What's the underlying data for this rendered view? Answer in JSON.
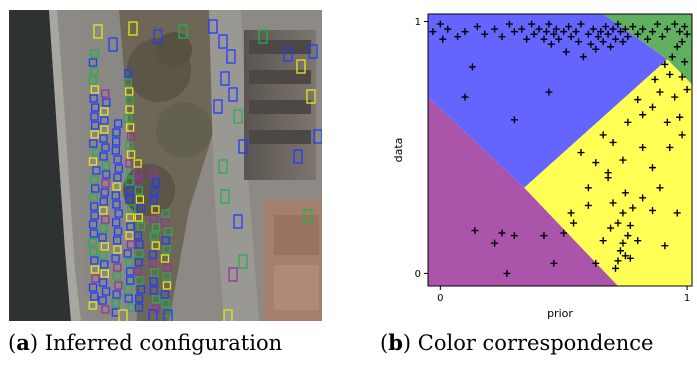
{
  "figure": {
    "panel_a": {
      "caption_tag": "a",
      "caption_text": "Inferred configuration",
      "box_colors": {
        "blue": "#1f3cff",
        "yellow": "#e8e61a",
        "green": "#22b14c",
        "purple": "#9b2fa3"
      }
    },
    "panel_b": {
      "caption_tag": "b",
      "caption_text": "Color correspondence"
    }
  },
  "chart_data": {
    "type": "scatter",
    "title": "",
    "xlabel": "prior",
    "ylabel": "data",
    "xlim": [
      -0.05,
      1.02
    ],
    "ylim": [
      -0.05,
      1.03
    ],
    "xticks": [
      "0",
      "1"
    ],
    "yticks": [
      "0",
      "1"
    ],
    "grid": false,
    "regions": [
      {
        "color": "#6464ff",
        "polygon": [
          [
            -0.05,
            1.03
          ],
          [
            0.66,
            1.03
          ],
          [
            0.92,
            0.85
          ],
          [
            0.34,
            0.34
          ],
          [
            -0.05,
            0.7
          ]
        ]
      },
      {
        "color": "#60b060",
        "polygon": [
          [
            0.66,
            1.03
          ],
          [
            1.02,
            1.03
          ],
          [
            1.02,
            0.75
          ],
          [
            0.92,
            0.85
          ]
        ]
      },
      {
        "color": "#ffff55",
        "polygon": [
          [
            0.34,
            0.34
          ],
          [
            0.92,
            0.85
          ],
          [
            1.02,
            0.75
          ],
          [
            1.02,
            -0.05
          ],
          [
            0.72,
            -0.05
          ]
        ]
      },
      {
        "color": "#aa55aa",
        "polygon": [
          [
            -0.05,
            0.7
          ],
          [
            0.34,
            0.34
          ],
          [
            0.72,
            -0.05
          ],
          [
            -0.05,
            -0.05
          ]
        ]
      }
    ],
    "points": [
      [
        -0.03,
        0.96
      ],
      [
        0.0,
        0.99
      ],
      [
        0.01,
        0.93
      ],
      [
        0.03,
        0.97
      ],
      [
        0.07,
        0.94
      ],
      [
        0.1,
        0.96
      ],
      [
        0.15,
        0.98
      ],
      [
        0.18,
        0.95
      ],
      [
        0.22,
        0.97
      ],
      [
        0.25,
        0.94
      ],
      [
        0.28,
        0.99
      ],
      [
        0.3,
        0.96
      ],
      [
        0.33,
        0.97
      ],
      [
        0.35,
        0.93
      ],
      [
        0.37,
        0.99
      ],
      [
        0.38,
        0.95
      ],
      [
        0.4,
        0.97
      ],
      [
        0.42,
        0.93
      ],
      [
        0.43,
        0.96
      ],
      [
        0.44,
        0.99
      ],
      [
        0.45,
        0.91
      ],
      [
        0.46,
        0.95
      ],
      [
        0.47,
        0.97
      ],
      [
        0.48,
        0.93
      ],
      [
        0.5,
        0.96
      ],
      [
        0.51,
        0.88
      ],
      [
        0.52,
        0.98
      ],
      [
        0.53,
        0.94
      ],
      [
        0.55,
        0.96
      ],
      [
        0.56,
        0.92
      ],
      [
        0.57,
        0.99
      ],
      [
        0.58,
        0.86
      ],
      [
        0.6,
        0.95
      ],
      [
        0.61,
        0.91
      ],
      [
        0.62,
        0.97
      ],
      [
        0.63,
        0.89
      ],
      [
        0.64,
        0.94
      ],
      [
        0.65,
        0.96
      ],
      [
        0.66,
        0.92
      ],
      [
        0.67,
        0.98
      ],
      [
        0.68,
        0.95
      ],
      [
        0.69,
        0.9
      ],
      [
        0.7,
        0.97
      ],
      [
        0.71,
        0.93
      ],
      [
        0.72,
        0.99
      ],
      [
        0.73,
        0.96
      ],
      [
        0.74,
        0.92
      ],
      [
        0.75,
        0.97
      ],
      [
        0.76,
        0.94
      ],
      [
        0.78,
        0.98
      ],
      [
        0.8,
        0.95
      ],
      [
        0.82,
        0.97
      ],
      [
        0.84,
        0.93
      ],
      [
        0.86,
        0.96
      ],
      [
        0.88,
        0.99
      ],
      [
        0.9,
        0.94
      ],
      [
        0.92,
        0.97
      ],
      [
        0.95,
        0.99
      ],
      [
        0.97,
        0.96
      ],
      [
        0.99,
        0.98
      ],
      [
        1.0,
        0.95
      ],
      [
        0.98,
        0.92
      ],
      [
        0.96,
        0.9
      ],
      [
        0.94,
        0.86
      ],
      [
        0.91,
        0.83
      ],
      [
        0.93,
        0.79
      ],
      [
        0.99,
        0.84
      ],
      [
        0.98,
        0.78
      ],
      [
        1.0,
        0.73
      ],
      [
        0.87,
        0.77
      ],
      [
        0.89,
        0.72
      ],
      [
        0.95,
        0.7
      ],
      [
        0.97,
        0.62
      ],
      [
        0.92,
        0.6
      ],
      [
        0.86,
        0.66
      ],
      [
        0.8,
        0.69
      ],
      [
        0.82,
        0.63
      ],
      [
        0.76,
        0.6
      ],
      [
        0.7,
        0.52
      ],
      [
        0.63,
        0.44
      ],
      [
        0.57,
        0.48
      ],
      [
        0.66,
        0.55
      ],
      [
        0.74,
        0.45
      ],
      [
        0.6,
        0.34
      ],
      [
        0.68,
        0.38
      ],
      [
        0.82,
        0.5
      ],
      [
        0.86,
        0.42
      ],
      [
        0.93,
        0.5
      ],
      [
        0.98,
        0.55
      ],
      [
        0.89,
        0.34
      ],
      [
        0.82,
        0.3
      ],
      [
        0.75,
        0.32
      ],
      [
        0.7,
        0.28
      ],
      [
        0.6,
        0.27
      ],
      [
        0.53,
        0.24
      ],
      [
        0.54,
        0.2
      ],
      [
        0.66,
        0.13
      ],
      [
        0.69,
        0.18
      ],
      [
        0.72,
        0.2
      ],
      [
        0.74,
        0.24
      ],
      [
        0.77,
        0.19
      ],
      [
        0.76,
        0.15
      ],
      [
        0.74,
        0.12
      ],
      [
        0.73,
        0.09
      ],
      [
        0.75,
        0.07
      ],
      [
        0.72,
        0.05
      ],
      [
        0.77,
        0.06
      ],
      [
        0.8,
        0.13
      ],
      [
        0.78,
        0.26
      ],
      [
        0.86,
        0.25
      ],
      [
        0.91,
        0.11
      ],
      [
        0.96,
        0.24
      ],
      [
        0.63,
        0.04
      ],
      [
        0.71,
        0.02
      ],
      [
        0.5,
        0.16
      ],
      [
        0.46,
        0.04
      ],
      [
        0.42,
        0.15
      ],
      [
        0.3,
        0.15
      ],
      [
        0.25,
        0.16
      ],
      [
        0.22,
        0.12
      ],
      [
        0.14,
        0.17
      ],
      [
        0.27,
        0.0
      ],
      [
        0.1,
        0.7
      ],
      [
        0.13,
        0.82
      ],
      [
        0.3,
        0.61
      ],
      [
        0.44,
        0.72
      ],
      [
        0.68,
        0.4
      ]
    ]
  }
}
